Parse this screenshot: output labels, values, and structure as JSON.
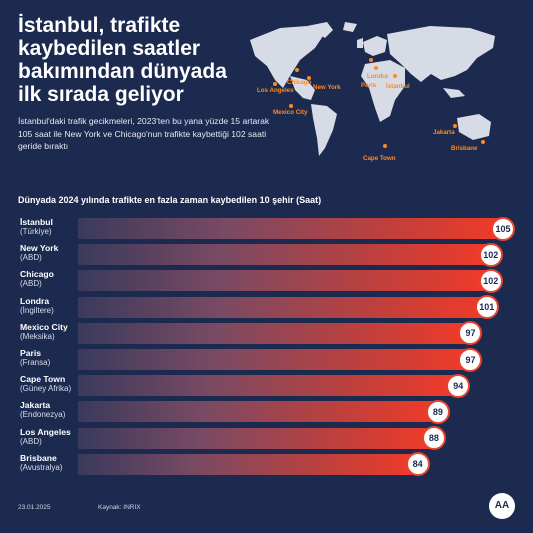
{
  "header": {
    "title": "İstanbul, trafikte kaybedilen saatler bakımından dünyada ilk sırada geliyor",
    "subtitle": "İstanbul'daki trafik gecikmeleri, 2023'ten bu yana yüzde 15 artarak 105 saat ile New York ve Chicago'nun trafikte kaybettiği 102 saati geride bıraktı"
  },
  "map": {
    "cities": [
      "Chicago",
      "New York",
      "Los Angeles",
      "Mexico City",
      "Londra",
      "Paris",
      "İstanbul",
      "Cape Town",
      "Jakarta",
      "Brisbane"
    ]
  },
  "chart_data": {
    "type": "bar",
    "orientation": "horizontal",
    "title": "Dünyada 2024 yılında trafikte en fazla zaman kaybedilen 10 şehir (Saat)",
    "categories": [
      "İstanbul",
      "New York",
      "Chicago",
      "Londra",
      "Mexico City",
      "Paris",
      "Cape Town",
      "Jakarta",
      "Los Angeles",
      "Brisbane"
    ],
    "countries": [
      "(Türkiye)",
      "(ABD)",
      "(ABD)",
      "(İngiltere)",
      "(Meksika)",
      "(Fransa)",
      "(Güney Afrika)",
      "(Endonezya)",
      "(ABD)",
      "(Avustralya)"
    ],
    "values": [
      105,
      102,
      102,
      101,
      97,
      97,
      94,
      89,
      88,
      84
    ],
    "data_labels": [
      "105",
      "102",
      "102",
      "101",
      "97",
      "97",
      "94",
      "89",
      "88",
      "84"
    ],
    "bar_gradient": [
      "#3a3a5c",
      "#f23a28"
    ],
    "legend": "none",
    "grid": false
  },
  "footer": {
    "date": "23.01.2025",
    "source": "Kaynak: INRIX",
    "logo": "AA"
  },
  "colors": {
    "background": "#1c2a4f",
    "accent": "#e8432e",
    "pin": "#ff8a1e"
  }
}
